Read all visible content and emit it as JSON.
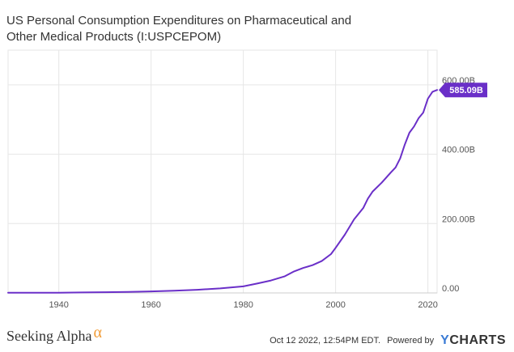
{
  "title_line1": "US Personal Consumption Expenditures on Pharmaceutical and",
  "title_line2": "Other Medical Products (I:USPCEPOM)",
  "footer": {
    "brand": "Seeking Alpha",
    "brand_symbol": "α",
    "timestamp": "Oct 12 2022, 12:54PM EDT.",
    "powered_by": "Powered by",
    "provider_y": "Y",
    "provider_rest": "CHARTS"
  },
  "colors": {
    "line": "#6a2fc8",
    "grid": "#e6e6e6",
    "axis_text": "#555555",
    "badge_bg": "#6a2fc8",
    "badge_text": "#ffffff",
    "brand_alpha": "#f29d38",
    "ycharts_y": "#3a7bd5"
  },
  "chart_data": {
    "type": "line",
    "title": "US Personal Consumption Expenditures on Pharmaceutical and Other Medical Products (I:USPCEPOM)",
    "x_unit": "year",
    "y_unit": "billions USD",
    "xlim": [
      1929,
      2022
    ],
    "ylim": [
      0,
      700
    ],
    "x_ticks": [
      1940,
      1960,
      1980,
      2000,
      2020
    ],
    "y_ticks": [
      0,
      200,
      400,
      600
    ],
    "y_tick_labels": [
      "0.00",
      "200.00B",
      "400.00B",
      "600.00B"
    ],
    "grid": true,
    "last_value_label": "585.09B",
    "series": [
      {
        "name": "I:USPCEPOM",
        "x": [
          1929,
          1935,
          1940,
          1945,
          1950,
          1955,
          1960,
          1965,
          1970,
          1975,
          1980,
          1983,
          1986,
          1989,
          1991,
          1993,
          1995,
          1997,
          1999,
          2000,
          2002,
          2004,
          2006,
          2007,
          2008,
          2010,
          2012,
          2013,
          2014,
          2015,
          2016,
          2017,
          2018,
          2019,
          2020,
          2021,
          2022
        ],
        "y": [
          0.5,
          0.5,
          0.8,
          1.5,
          2.0,
          3.0,
          4.5,
          6.5,
          9.0,
          13.0,
          19.0,
          27.0,
          36.0,
          48.0,
          62.0,
          72.0,
          80.0,
          92.0,
          112.0,
          130.0,
          168.0,
          212.0,
          245.0,
          272.0,
          292.0,
          318.0,
          348.0,
          362.0,
          388.0,
          428.0,
          462.0,
          480.0,
          504.0,
          520.0,
          560.0,
          580.0,
          585.09
        ]
      }
    ]
  }
}
